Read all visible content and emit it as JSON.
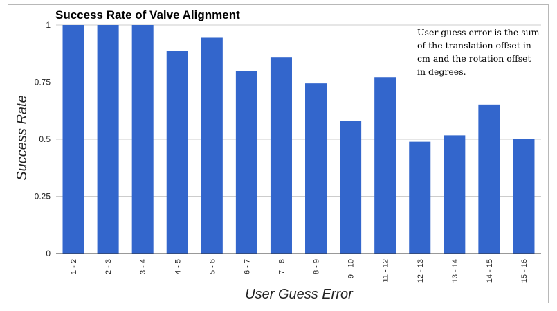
{
  "chart_data": {
    "type": "bar",
    "title": "Success Rate of Valve Alignment",
    "xlabel": "User Guess Error",
    "ylabel": "Success Rate",
    "categories": [
      "1 - 2",
      "2 - 3",
      "3 - 4",
      "4 - 5",
      "5 - 6",
      "6 - 7",
      "7 - 8",
      "8 - 9",
      "9 - 10",
      "11 - 12",
      "12 - 13",
      "13 - 14",
      "14 - 15",
      "15 - 16"
    ],
    "values": [
      1.0,
      1.0,
      1.0,
      0.885,
      0.944,
      0.8,
      0.857,
      0.745,
      0.58,
      0.772,
      0.489,
      0.517,
      0.652,
      0.5
    ],
    "ylim": [
      0,
      1
    ],
    "yticks": [
      "0",
      "0.25",
      "0.5",
      "0.75",
      "1"
    ],
    "grid": true,
    "legend": "none",
    "bar_color": "#3366cc",
    "annotation_lines": [
      "User guess error is the sum",
      "of the translation offset in",
      "cm and the rotation offset",
      "in degrees."
    ]
  }
}
